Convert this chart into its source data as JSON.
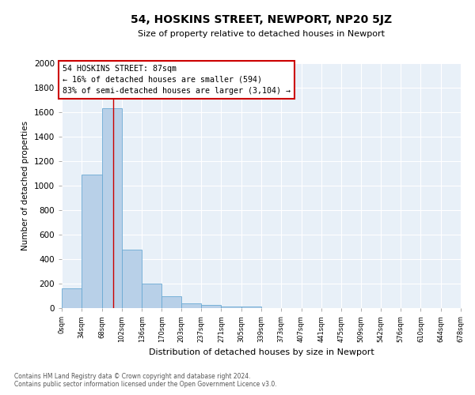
{
  "title": "54, HOSKINS STREET, NEWPORT, NP20 5JZ",
  "subtitle": "Size of property relative to detached houses in Newport",
  "xlabel": "Distribution of detached houses by size in Newport",
  "ylabel": "Number of detached properties",
  "footnote1": "Contains HM Land Registry data © Crown copyright and database right 2024.",
  "footnote2": "Contains public sector information licensed under the Open Government Licence v3.0.",
  "bin_edges": [
    0,
    34,
    68,
    102,
    136,
    170,
    203,
    237,
    271,
    305,
    339,
    373,
    407,
    441,
    475,
    509,
    542,
    576,
    610,
    644,
    678
  ],
  "bar_heights": [
    160,
    1090,
    1630,
    480,
    200,
    100,
    40,
    25,
    15,
    15,
    0,
    0,
    0,
    0,
    0,
    0,
    0,
    0,
    0,
    0
  ],
  "bar_color": "#b8d0e8",
  "bar_edge_color": "#6aaad4",
  "background_color": "#e8f0f8",
  "grid_color": "#ffffff",
  "red_line_x": 87,
  "annotation_text_line1": "54 HOSKINS STREET: 87sqm",
  "annotation_text_line2": "← 16% of detached houses are smaller (594)",
  "annotation_text_line3": "83% of semi-detached houses are larger (3,104) →",
  "annotation_box_color": "#cc0000",
  "ylim": [
    0,
    2000
  ],
  "yticks": [
    0,
    200,
    400,
    600,
    800,
    1000,
    1200,
    1400,
    1600,
    1800,
    2000
  ],
  "fig_width": 6.0,
  "fig_height": 5.0,
  "dpi": 100
}
